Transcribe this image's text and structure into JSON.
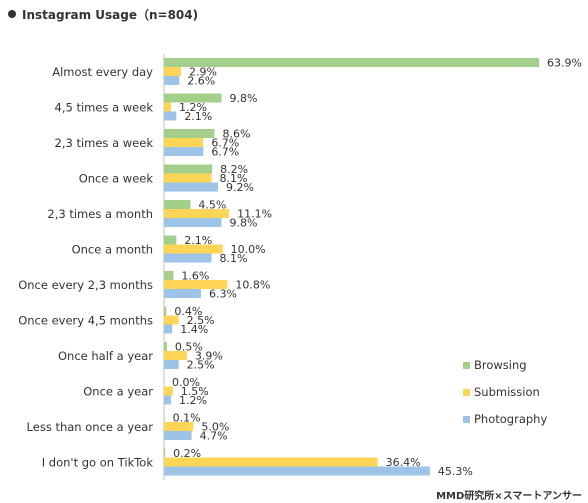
{
  "title": "Instagram Usage（n=804)",
  "source": "MMD研究所×スマートアンサー",
  "colors": {
    "Browsing": "#a4cf8a",
    "Submission": "#ffd557",
    "Photography": "#9dc3e6"
  },
  "chart_data": {
    "type": "bar",
    "orientation": "horizontal",
    "title": "Instagram Usage（n=804)",
    "categories": [
      "Almost every day",
      "4,5 times a week",
      "2,3 times a week",
      "Once a week",
      "2,3 times a month",
      "Once a month",
      "Once every 2,3 months",
      "Once every 4,5 months",
      "Once half a year",
      "Once a year",
      "Less than once a year",
      "I don't go on TikTok"
    ],
    "series": [
      {
        "name": "Browsing",
        "values": [
          63.9,
          9.8,
          8.6,
          8.2,
          4.5,
          2.1,
          1.6,
          0.4,
          0.5,
          0.0,
          0.1,
          0.2
        ]
      },
      {
        "name": "Submission",
        "values": [
          2.9,
          1.2,
          6.7,
          8.1,
          11.1,
          10.0,
          10.8,
          2.5,
          3.9,
          1.5,
          5.0,
          36.4
        ]
      },
      {
        "name": "Photography",
        "values": [
          2.6,
          2.1,
          6.7,
          9.2,
          9.8,
          8.1,
          6.3,
          1.4,
          2.5,
          1.2,
          4.7,
          45.3
        ]
      }
    ],
    "value_suffix": "%",
    "xlim": [
      0,
      63.9
    ],
    "legend_position": "right"
  }
}
